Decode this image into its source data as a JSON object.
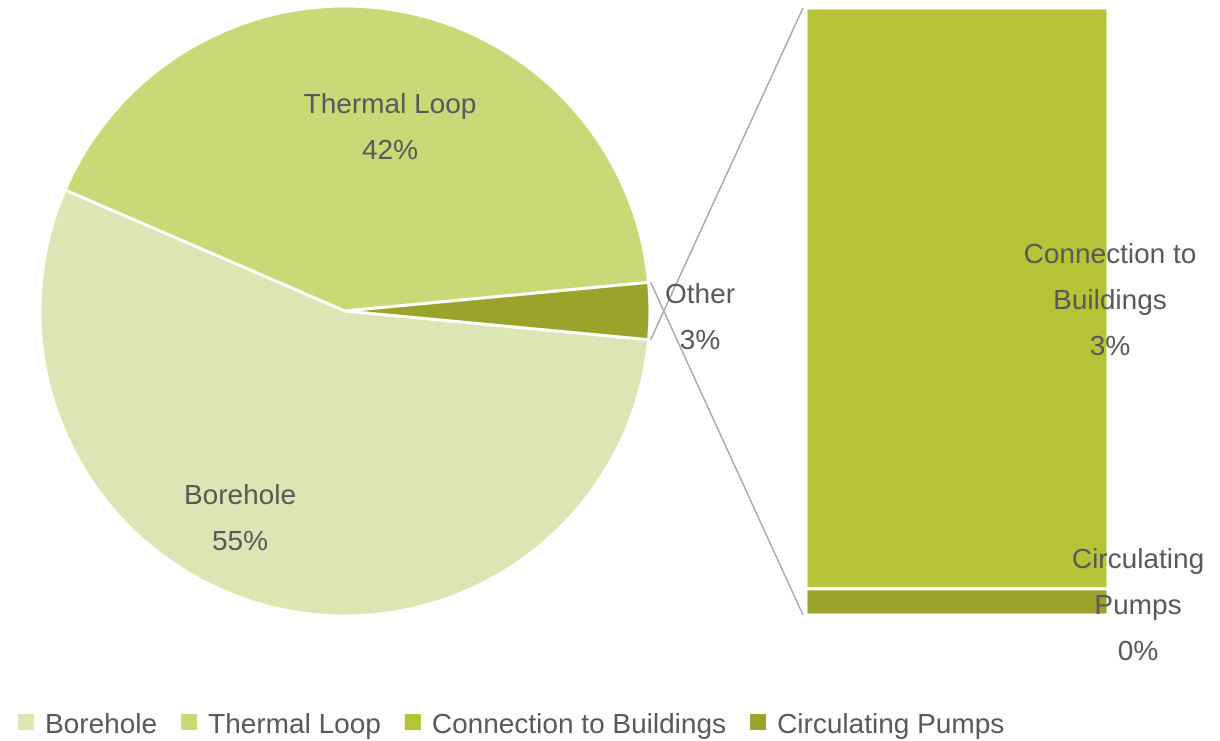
{
  "chart_data": {
    "type": "bar-of-pie",
    "pie": {
      "categories": [
        "Borehole",
        "Thermal Loop",
        "Other"
      ],
      "values": [
        55,
        42,
        3
      ],
      "value_labels": [
        "55%",
        "42%",
        "3%"
      ],
      "colors": [
        "#dce6b4",
        "#c9d977",
        "#9aa42a"
      ]
    },
    "bar": {
      "categories": [
        "Connection to Buildings",
        "Circulating Pumps"
      ],
      "values": [
        2.87,
        0.13
      ],
      "value_labels": [
        "3%",
        "0%"
      ],
      "colors": [
        "#b5c336",
        "#9aa42a"
      ]
    },
    "legend": {
      "position": "bottom"
    }
  }
}
